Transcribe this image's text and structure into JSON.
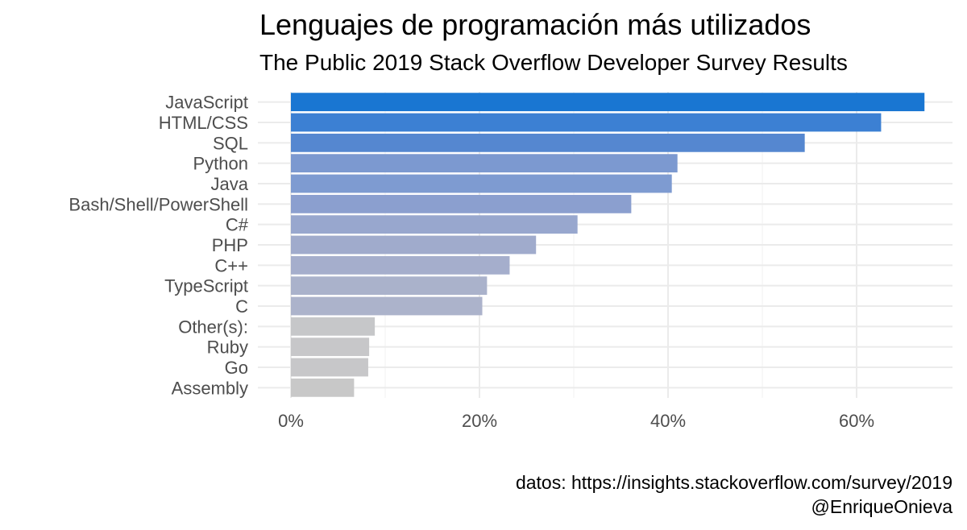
{
  "chart_data": {
    "type": "bar",
    "orientation": "horizontal",
    "title": "Lenguajes de programación más utilizados",
    "subtitle": "The Public 2019 Stack Overflow Developer Survey Results",
    "caption_lines": [
      "datos: https://insights.stackoverflow.com/survey/2019",
      "@EnriqueOnieva"
    ],
    "xlabel": "",
    "ylabel": "",
    "xlim": [
      0,
      0.7
    ],
    "x_ticks": [
      0,
      0.2,
      0.4,
      0.6
    ],
    "x_tick_labels": [
      "0%",
      "20%",
      "40%",
      "60%"
    ],
    "grid": true,
    "legend": "none",
    "categories": [
      "JavaScript",
      "HTML/CSS",
      "SQL",
      "Python",
      "Java",
      "Bash/Shell/PowerShell",
      "C#",
      "PHP",
      "C++",
      "TypeScript",
      "C",
      "Other(s):",
      "Ruby",
      "Go",
      "Assembly"
    ],
    "values": [
      0.672,
      0.626,
      0.545,
      0.41,
      0.404,
      0.361,
      0.304,
      0.26,
      0.232,
      0.208,
      0.203,
      0.089,
      0.083,
      0.082,
      0.067
    ],
    "colors": [
      "#1976d2",
      "#3c80d3",
      "#5587d0",
      "#7c99d0",
      "#7e9bd1",
      "#8b9fcf",
      "#98a7ce",
      "#a0abcc",
      "#a5aecc",
      "#aab2cb",
      "#acb3cb",
      "#c6c7c9",
      "#c7c7c9",
      "#c7c7c9",
      "#c8c8c8"
    ]
  }
}
